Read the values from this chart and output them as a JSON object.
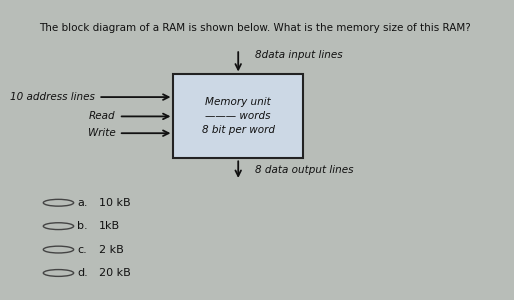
{
  "title": "The block diagram of a RAM is shown below. What is the memory size of this RAM?",
  "title_fontsize": 7.5,
  "outer_bg": "#b8bdb8",
  "panel_bg": "#dde3e8",
  "top_bg": "#f0f0f0",
  "box_facecolor": "#ccd8e5",
  "box_edgecolor": "#222222",
  "memory_line1": "Memory unit",
  "memory_line2": "——— words",
  "memory_line3": "8 bit per word",
  "label_10addr": "10 address lines",
  "label_read": "Read",
  "label_write": "Write",
  "label_data_in": "8data input lines",
  "label_data_out": "8 data output lines",
  "options": [
    [
      "a.",
      "10 kB"
    ],
    [
      "b.",
      "1kB"
    ],
    [
      "c.",
      "2 kB"
    ],
    [
      "d.",
      "20 kB"
    ]
  ],
  "option_fontsize": 8,
  "arrow_color": "#111111",
  "text_color": "#111111",
  "label_fontsize": 7.5,
  "inner_fontsize": 7.5,
  "title_bg": "#e8e8e8"
}
